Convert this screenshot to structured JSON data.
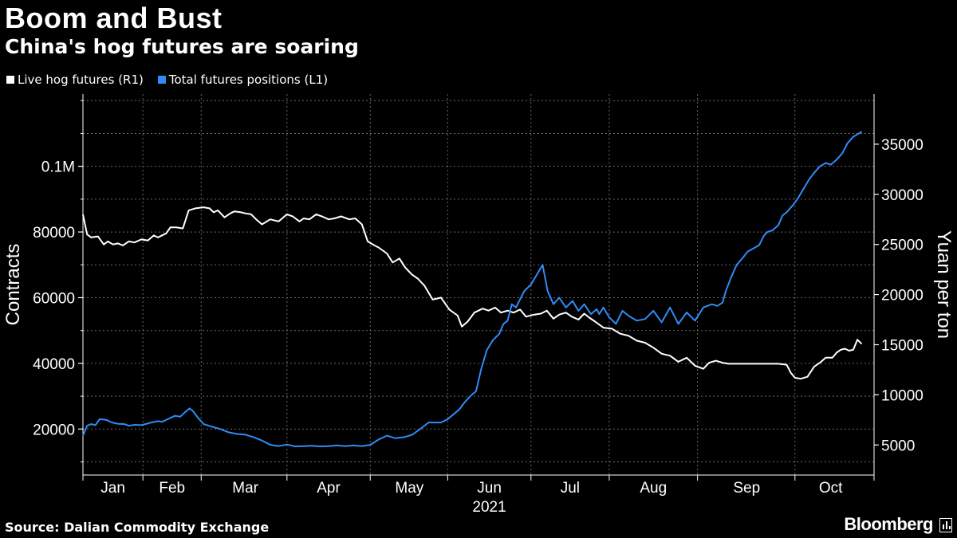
{
  "header": {
    "title": "Boom and Bust",
    "subtitle": "China's hog futures are soaring"
  },
  "legend": [
    {
      "label": "Live hog futures  (R1)",
      "color": "#ffffff"
    },
    {
      "label": "Total futures positions (L1)",
      "color": "#2f8cf5"
    }
  ],
  "footer": {
    "source": "Source: Dalian Commodity Exchange",
    "brand": "Bloomberg"
  },
  "chart_data": {
    "type": "line",
    "year_label": "2021",
    "ylabel_left": "Contracts",
    "ylabel_right": "Yuan per ton",
    "x_range": [
      0,
      9.5
    ],
    "x_month_boundaries": [
      0,
      0.72,
      1.42,
      2.45,
      3.45,
      4.38,
      5.38,
      6.32,
      7.38,
      8.55,
      9.5
    ],
    "x_tick_labels": [
      {
        "label": "Jan",
        "x": 0.36
      },
      {
        "label": "Feb",
        "x": 1.07
      },
      {
        "label": "Mar",
        "x": 1.95
      },
      {
        "label": "Apr",
        "x": 2.95
      },
      {
        "label": "May",
        "x": 3.92
      },
      {
        "label": "Jun",
        "x": 4.88
      },
      {
        "label": "Jul",
        "x": 5.85
      },
      {
        "label": "Aug",
        "x": 6.85
      },
      {
        "label": "Sep",
        "x": 7.97
      },
      {
        "label": "Oct",
        "x": 8.98
      }
    ],
    "left_axis": {
      "ylim": [
        6000,
        122000
      ],
      "ticks": [
        20000,
        40000,
        60000,
        80000,
        100000
      ],
      "tick_labels": [
        "20000",
        "40000",
        "60000",
        "80000",
        "0.1M"
      ],
      "minor_ticks": [
        10000,
        30000,
        50000,
        70000,
        90000,
        110000,
        120000
      ]
    },
    "right_axis": {
      "ylim": [
        2000,
        40000
      ],
      "ticks": [
        5000,
        10000,
        15000,
        20000,
        25000,
        30000,
        35000
      ],
      "tick_labels": [
        "5000",
        "10000",
        "15000",
        "20000",
        "25000",
        "30000",
        "35000"
      ]
    },
    "series": [
      {
        "name": "Live hog futures",
        "axis": "right",
        "color": "#ffffff",
        "x": [
          0,
          0.05,
          0.1,
          0.18,
          0.25,
          0.3,
          0.36,
          0.42,
          0.48,
          0.55,
          0.62,
          0.7,
          0.78,
          0.85,
          0.9,
          1.0,
          1.05,
          1.12,
          1.2,
          1.27,
          1.35,
          1.45,
          1.52,
          1.57,
          1.62,
          1.7,
          1.77,
          1.82,
          1.9,
          1.95,
          2.02,
          2.08,
          2.15,
          2.25,
          2.35,
          2.45,
          2.52,
          2.6,
          2.65,
          2.72,
          2.8,
          2.87,
          2.95,
          3.02,
          3.1,
          3.2,
          3.27,
          3.35,
          3.42,
          3.5,
          3.55,
          3.65,
          3.72,
          3.8,
          3.87,
          3.95,
          4.02,
          4.1,
          4.2,
          4.3,
          4.4,
          4.5,
          4.55,
          4.62,
          4.7,
          4.8,
          4.87,
          4.95,
          5.02,
          5.1,
          5.17,
          5.25,
          5.32,
          5.42,
          5.5,
          5.57,
          5.65,
          5.72,
          5.8,
          5.87,
          5.95,
          6.02,
          6.08,
          6.15,
          6.25,
          6.35,
          6.45,
          6.55,
          6.65,
          6.75,
          6.85,
          6.95,
          7.05,
          7.15,
          7.25,
          7.35,
          7.45,
          7.52,
          7.6,
          7.68,
          7.75,
          7.85,
          7.95,
          8.05,
          8.15,
          8.25,
          8.35,
          8.45,
          8.5,
          8.55,
          8.62,
          8.7,
          8.78,
          8.85,
          8.92,
          9.0,
          9.05,
          9.1,
          9.15,
          9.2,
          9.25,
          9.3,
          9.35
        ],
        "values": [
          28000,
          26000,
          25700,
          25800,
          25000,
          25300,
          25000,
          25100,
          24900,
          25300,
          25200,
          25500,
          25400,
          25900,
          25700,
          26100,
          26700,
          26700,
          26600,
          28400,
          28600,
          28700,
          28600,
          28200,
          28400,
          27700,
          28100,
          28300,
          28200,
          28100,
          28000,
          27500,
          27000,
          27500,
          27300,
          28000,
          27800,
          27300,
          27600,
          27500,
          28000,
          27800,
          27500,
          27600,
          27800,
          27500,
          27600,
          27000,
          25300,
          24900,
          24700,
          24100,
          23200,
          23600,
          22700,
          22000,
          21600,
          20900,
          19500,
          19700,
          18500,
          17900,
          16800,
          17300,
          18200,
          18600,
          18400,
          18700,
          18200,
          18400,
          18200,
          18500,
          17800,
          18000,
          18100,
          18400,
          17600,
          18000,
          18200,
          17800,
          17500,
          18100,
          17700,
          17300,
          16700,
          16600,
          16100,
          15900,
          15400,
          15200,
          14700,
          14100,
          13900,
          13300,
          13700,
          12900,
          12600,
          13200,
          13400,
          13200,
          13100,
          13100,
          13100,
          13100,
          13100,
          13100,
          13100,
          13000,
          12200,
          11700,
          11600,
          11800,
          12800,
          13200,
          13700,
          13700,
          14200,
          14500,
          14600,
          14400,
          14500,
          15500,
          15100
        ]
      },
      {
        "name": "Total futures positions",
        "axis": "left",
        "color": "#2f8cf5",
        "x": [
          0,
          0.05,
          0.1,
          0.15,
          0.2,
          0.28,
          0.35,
          0.42,
          0.5,
          0.55,
          0.62,
          0.7,
          0.75,
          0.82,
          0.9,
          0.95,
          1.02,
          1.1,
          1.17,
          1.22,
          1.28,
          1.32,
          1.38,
          1.45,
          1.55,
          1.65,
          1.75,
          1.85,
          1.95,
          2.05,
          2.15,
          2.25,
          2.35,
          2.45,
          2.55,
          2.65,
          2.75,
          2.85,
          2.95,
          3.05,
          3.15,
          3.25,
          3.35,
          3.45,
          3.55,
          3.65,
          3.75,
          3.85,
          3.95,
          4.05,
          4.15,
          4.22,
          4.3,
          4.38,
          4.45,
          4.52,
          4.58,
          4.65,
          4.72,
          4.78,
          4.85,
          4.92,
          5.0,
          5.05,
          5.1,
          5.15,
          5.2,
          5.3,
          5.38,
          5.45,
          5.52,
          5.58,
          5.65,
          5.72,
          5.8,
          5.88,
          5.95,
          6.02,
          6.1,
          6.17,
          6.2,
          6.25,
          6.32,
          6.4,
          6.48,
          6.55,
          6.65,
          6.75,
          6.85,
          6.95,
          7.05,
          7.15,
          7.25,
          7.35,
          7.45,
          7.55,
          7.62,
          7.68,
          7.72,
          7.78,
          7.85,
          7.92,
          7.98,
          8.05,
          8.12,
          8.18,
          8.22,
          8.28,
          8.35,
          8.4,
          8.45,
          8.52,
          8.58,
          8.65,
          8.72,
          8.78,
          8.85,
          8.92,
          8.98,
          9.05,
          9.12,
          9.18,
          9.25,
          9.35
        ],
        "values": [
          18000,
          21000,
          21500,
          21200,
          23000,
          22800,
          22000,
          21600,
          21500,
          21000,
          21300,
          21200,
          21500,
          22000,
          22400,
          22200,
          23000,
          24000,
          23800,
          25000,
          26300,
          25500,
          23500,
          21500,
          20700,
          20000,
          19000,
          18500,
          18300,
          17500,
          16500,
          15200,
          14800,
          15300,
          14700,
          14800,
          14900,
          14700,
          14800,
          15000,
          14800,
          15000,
          14800,
          15200,
          16800,
          18000,
          17200,
          17500,
          18200,
          20000,
          22000,
          22000,
          22000,
          23000,
          24500,
          26000,
          28000,
          30000,
          31500,
          38000,
          44000,
          47000,
          49000,
          52000,
          53000,
          58000,
          57000,
          62000,
          64000,
          67000,
          70000,
          62000,
          58000,
          60000,
          57000,
          59000,
          56000,
          58000,
          55000,
          56500,
          55000,
          57000,
          54000,
          52000,
          56000,
          54500,
          53000,
          53500,
          56000,
          52500,
          57000,
          52000,
          55500,
          53000,
          57000,
          58000,
          57500,
          58500,
          62000,
          66000,
          70000,
          72000,
          74000,
          75000,
          76000,
          79000,
          80000,
          80500,
          82000,
          85000,
          86000,
          88000,
          90000,
          93000,
          96000,
          98000,
          100000,
          101000,
          100500,
          102000,
          104000,
          107000,
          109000,
          110500
        ]
      }
    ]
  }
}
